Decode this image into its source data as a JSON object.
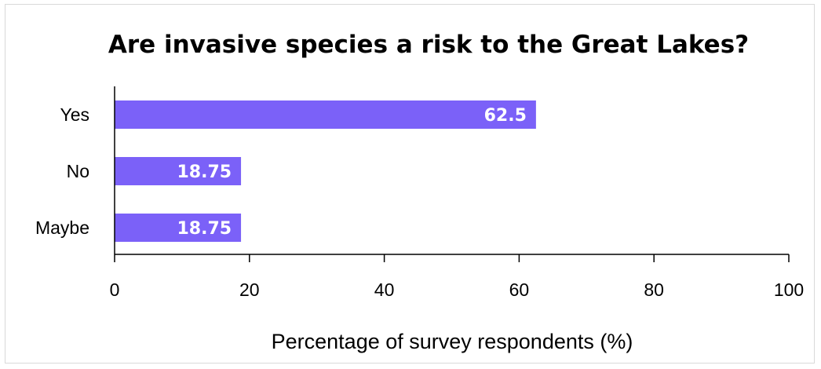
{
  "chart_data": {
    "type": "bar",
    "orientation": "horizontal",
    "title": "Are invasive species a risk to the Great Lakes?",
    "categories": [
      "Yes",
      "No",
      "Maybe"
    ],
    "values": [
      62.5,
      18.75,
      18.75
    ],
    "data_labels": [
      "62.5",
      "18.75",
      "18.75"
    ],
    "xlabel": "Percentage of survey respondents (%)",
    "ylabel": "",
    "xlim": [
      0,
      100
    ],
    "xticks": [
      0,
      20,
      40,
      60,
      80,
      100
    ],
    "grid": false,
    "legend": "none",
    "bar_color": "#7b61f8",
    "label_color": "#ffffff"
  }
}
